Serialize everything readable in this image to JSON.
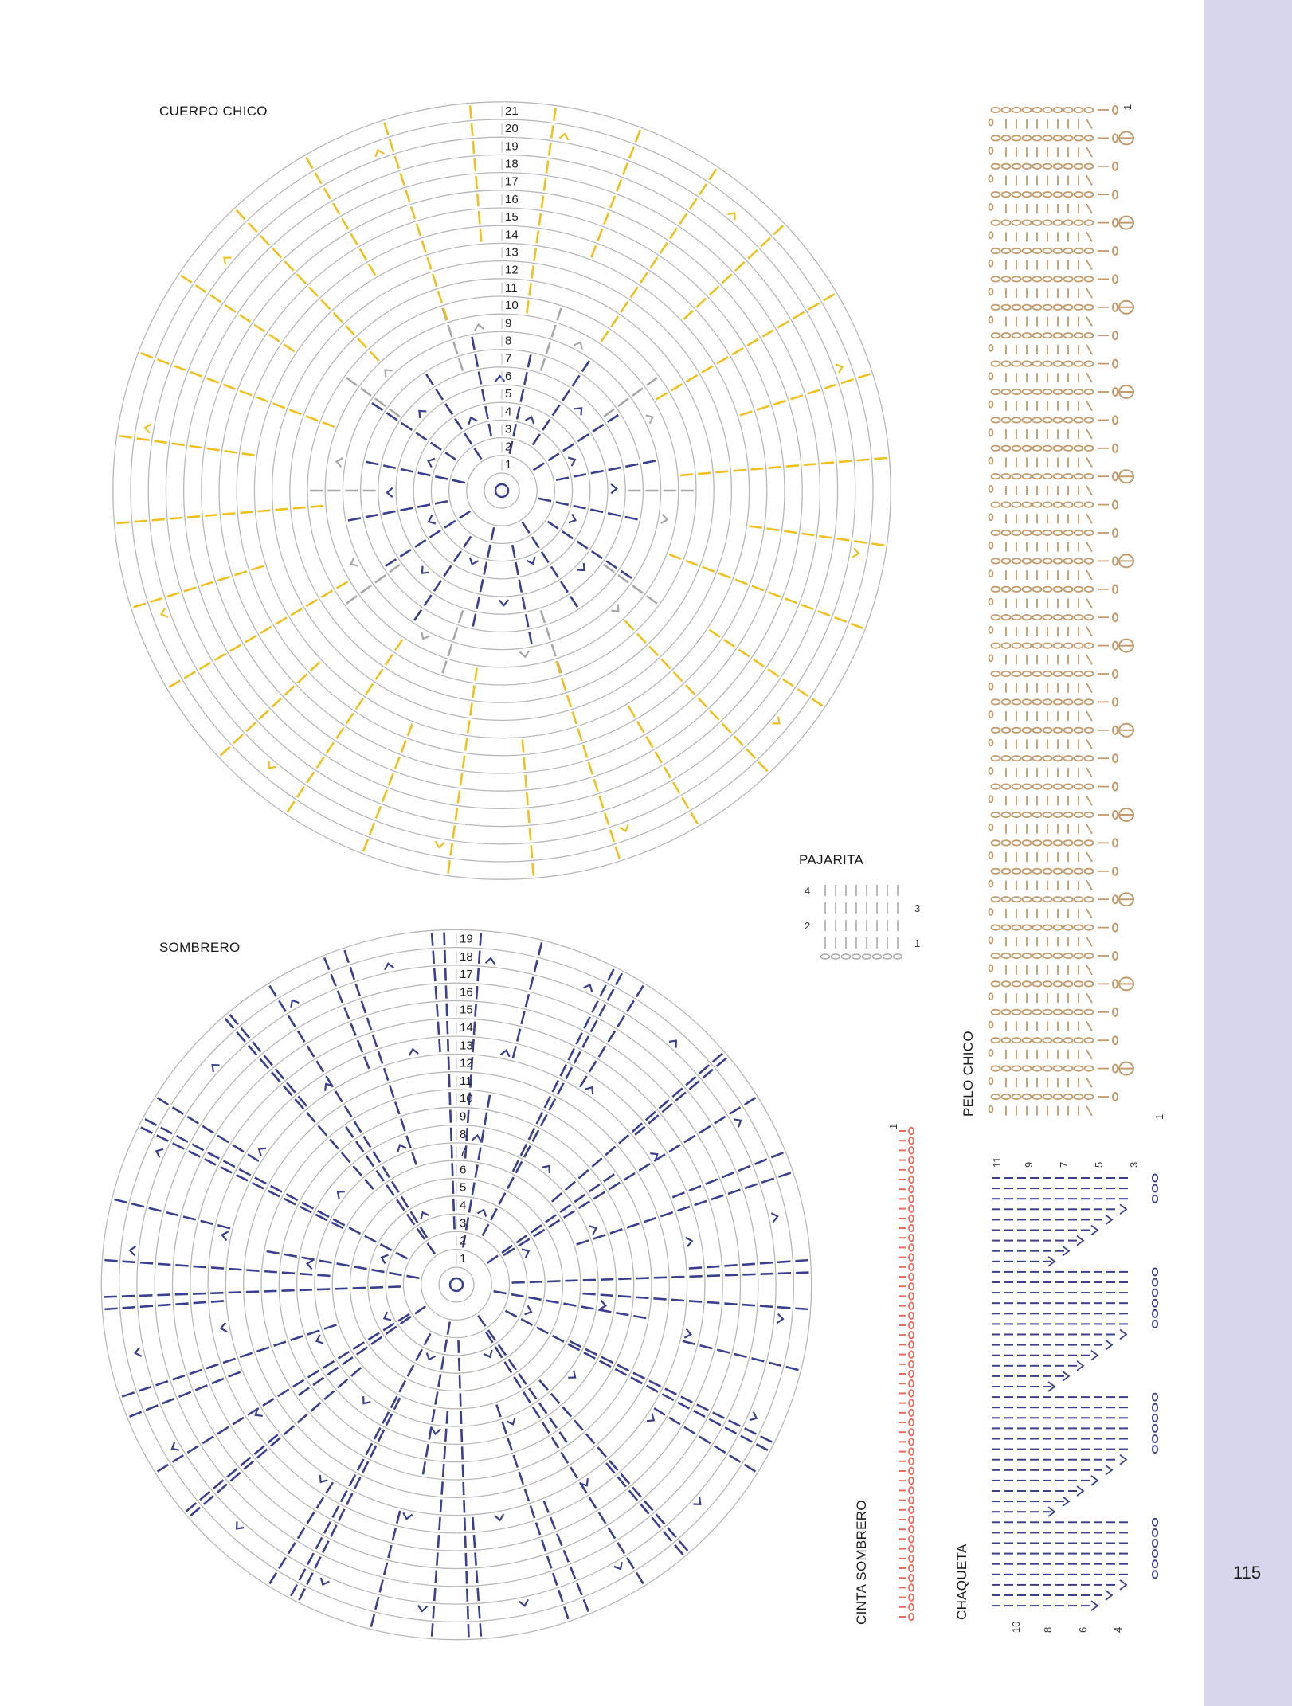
{
  "colors": {
    "side_band": "#d8d6ec",
    "ring": "#b8b8b8",
    "yellow": "#f0c020",
    "gray": "#a8a8a8",
    "navy": "#3a3f8f",
    "tan": "#c39a6b",
    "pink": "#e66a5e"
  },
  "page_number": "115",
  "cuerpo": {
    "title": "CUERPO CHICO",
    "rounds": [
      "1",
      "2",
      "3",
      "4",
      "5",
      "6",
      "7",
      "8",
      "9",
      "10",
      "11",
      "12",
      "13",
      "14",
      "15",
      "16",
      "17",
      "18",
      "19",
      "20",
      "21"
    ]
  },
  "sombrero": {
    "title": "SOMBRERO",
    "rounds": [
      "1",
      "2",
      "3",
      "4",
      "5",
      "6",
      "7",
      "8",
      "9",
      "10",
      "11",
      "12",
      "13",
      "14",
      "15",
      "16",
      "17",
      "18",
      "19"
    ]
  },
  "pajarita": {
    "title": "PAJARITA",
    "row_labels_left": [
      "4",
      "2"
    ],
    "row_labels_right": [
      "3",
      "1"
    ]
  },
  "pelo": {
    "title": "PELO CHICO",
    "row_label_top": "1",
    "row_label_bottom": "1"
  },
  "cinta": {
    "title": "CINTA SOMBRERO",
    "row_label": "1"
  },
  "chaqueta": {
    "title": "CHAQUETA",
    "top_labels": [
      "11",
      "9",
      "7",
      "5",
      "3"
    ],
    "bottom_labels": [
      "10",
      "8",
      "6",
      "4"
    ]
  }
}
